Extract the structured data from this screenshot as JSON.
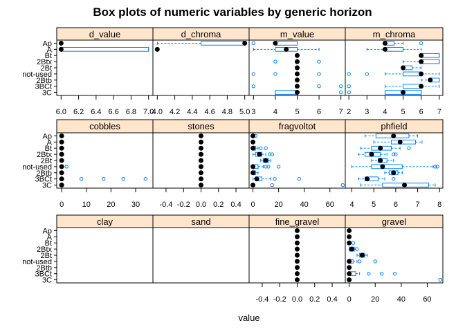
{
  "chart_data": {
    "type": "box",
    "title": "Box plots of numeric variables by generic horizon",
    "xlabel": "value",
    "categories": [
      "Ap",
      "A",
      "Bt",
      "2Btx",
      "2Bt",
      "not-used",
      "2Btb",
      "3BCt",
      "3C"
    ],
    "colors": {
      "strip": "#ffe5cc",
      "box": "#0080ff",
      "median": "#000000",
      "frame": "#000000"
    },
    "columns": [
      {
        "xlim": [
          5.95,
          7.05
        ],
        "ticks": [
          6.0,
          6.2,
          6.4,
          6.6,
          6.8,
          7.0
        ],
        "tick_labels": [
          "6.0",
          "6.2",
          "6.4",
          "6.6",
          "6.8",
          "7.0"
        ]
      },
      {
        "xlim": [
          3.95,
          5.05
        ],
        "ticks": [
          4.0,
          4.2,
          4.4,
          4.6,
          4.8,
          5.0
        ],
        "tick_labels": [
          "4.0",
          "4.2",
          "4.4",
          "4.6",
          "4.8",
          "5.0"
        ]
      },
      {
        "xlim": [
          2.8,
          7.2
        ],
        "ticks": [
          3,
          4,
          5,
          6,
          7
        ],
        "tick_labels": [
          "3",
          "4",
          "5",
          "6",
          "7"
        ]
      },
      {
        "xlim": [
          1.8,
          7.2
        ],
        "ticks": [
          2,
          3,
          4,
          5,
          6,
          7
        ],
        "tick_labels": [
          "2",
          "3",
          "4",
          "5",
          "6",
          "7"
        ]
      }
    ],
    "row_axes": [
      [
        {
          "xlim": [
            -2,
            37
          ],
          "ticks": [
            0,
            10,
            20,
            30
          ],
          "tick_labels": [
            "0",
            "10",
            "20",
            "30"
          ]
        },
        {
          "xlim": [
            -0.55,
            0.55
          ],
          "ticks": [
            -0.4,
            -0.2,
            0.0,
            0.2,
            0.4
          ],
          "tick_labels": [
            "-0.4",
            "-0.2",
            "0.0",
            "0.2",
            "0.4"
          ]
        },
        {
          "xlim": [
            -3,
            72
          ],
          "ticks": [
            0,
            20,
            40,
            60
          ],
          "tick_labels": [
            "0",
            "20",
            "40",
            "60"
          ]
        },
        {
          "xlim": [
            3.7,
            8.15
          ],
          "ticks": [
            4,
            5,
            6,
            7,
            8
          ],
          "tick_labels": [
            "4",
            "5",
            "6",
            "7",
            "8"
          ]
        }
      ],
      [
        {
          "xlim": [
            -0.55,
            0.55
          ],
          "ticks": [],
          "tick_labels": []
        },
        {
          "xlim": [
            -0.55,
            0.55
          ],
          "ticks": [],
          "tick_labels": []
        },
        {
          "xlim": [
            -0.55,
            0.55
          ],
          "ticks": [
            -0.4,
            -0.2,
            0.0,
            0.2,
            0.4
          ],
          "tick_labels": [
            "-0.4",
            "-0.2",
            "0.0",
            "0.2",
            "0.4"
          ]
        },
        {
          "xlim": [
            -3,
            72
          ],
          "ticks": [
            0,
            20,
            40,
            60
          ],
          "tick_labels": [
            "0",
            "20",
            "40",
            "60"
          ]
        }
      ]
    ],
    "panels": [
      {
        "name": "d_value",
        "boxes": [
          {
            "cat": "Ap",
            "q1": 6.0,
            "med": 6.0,
            "q3": 6.0,
            "lo": 6.0,
            "hi": 6.0,
            "out": []
          },
          {
            "cat": "A",
            "q1": 6.0,
            "med": 6.0,
            "q3": 7.0,
            "lo": 6.0,
            "hi": 7.0,
            "out": []
          }
        ]
      },
      {
        "name": "d_chroma",
        "boxes": [
          {
            "cat": "Ap",
            "q1": 4.5,
            "med": 5.0,
            "q3": 5.0,
            "lo": 4.0,
            "hi": 5.0,
            "out": []
          },
          {
            "cat": "A",
            "q1": 4.0,
            "med": 4.0,
            "q3": 4.0,
            "lo": 4.0,
            "hi": 4.0,
            "out": []
          }
        ]
      },
      {
        "name": "m_value",
        "boxes": [
          {
            "cat": "Ap",
            "q1": 4.0,
            "med": 4.0,
            "q3": 5.0,
            "lo": 4.0,
            "hi": 5.0,
            "out": [
              3
            ]
          },
          {
            "cat": "A",
            "q1": 4.0,
            "med": 4.5,
            "q3": 5.0,
            "lo": 3.0,
            "hi": 6.0,
            "out": []
          },
          {
            "cat": "Bt",
            "q1": 5.0,
            "med": 5.0,
            "q3": 5.0,
            "lo": 5.0,
            "hi": 5.0,
            "out": []
          },
          {
            "cat": "2Btx",
            "q1": 5.0,
            "med": 5.0,
            "q3": 5.0,
            "lo": 5.0,
            "hi": 5.0,
            "out": [
              4,
              6
            ]
          },
          {
            "cat": "2Bt",
            "q1": 5.0,
            "med": 5.0,
            "q3": 5.0,
            "lo": 5.0,
            "hi": 5.0,
            "out": []
          },
          {
            "cat": "not-used",
            "q1": 5.0,
            "med": 5.0,
            "q3": 5.0,
            "lo": 5.0,
            "hi": 5.0,
            "out": [
              3,
              4,
              6
            ]
          },
          {
            "cat": "2Btb",
            "q1": 5.0,
            "med": 5.0,
            "q3": 5.0,
            "lo": 5.0,
            "hi": 5.0,
            "out": []
          },
          {
            "cat": "3BCt",
            "q1": 5.0,
            "med": 5.0,
            "q3": 5.0,
            "lo": 5.0,
            "hi": 5.0,
            "out": [
              3,
              6,
              7
            ]
          },
          {
            "cat": "3C",
            "q1": 4.0,
            "med": 5.0,
            "q3": 5.0,
            "lo": 4.0,
            "hi": 5.0,
            "out": [
              7
            ]
          }
        ]
      },
      {
        "name": "m_chroma",
        "boxes": [
          {
            "cat": "Ap",
            "q1": 4.0,
            "med": 4.0,
            "q3": 4.5,
            "lo": 4.0,
            "hi": 5.0,
            "out": [
              6
            ]
          },
          {
            "cat": "A",
            "q1": 4.0,
            "med": 4.0,
            "q3": 5.0,
            "lo": 3.0,
            "hi": 6.0,
            "out": []
          },
          {
            "cat": "Bt",
            "q1": 6.0,
            "med": 6.0,
            "q3": 7.0,
            "lo": 6.0,
            "hi": 7.0,
            "out": []
          },
          {
            "cat": "2Btx",
            "q1": 6.0,
            "med": 6.0,
            "q3": 7.0,
            "lo": 5.0,
            "hi": 7.0,
            "out": []
          },
          {
            "cat": "2Bt",
            "q1": 5.0,
            "med": 5.0,
            "q3": 5.5,
            "lo": 5.0,
            "hi": 6.0,
            "out": []
          },
          {
            "cat": "not-used",
            "q1": 5.0,
            "med": 6.0,
            "q3": 6.0,
            "lo": 4.0,
            "hi": 7.0,
            "out": [
              2,
              3
            ]
          },
          {
            "cat": "2Btb",
            "q1": 6.5,
            "med": 6.5,
            "q3": 7.0,
            "lo": 6.0,
            "hi": 7.0,
            "out": []
          },
          {
            "cat": "3BCt",
            "q1": 5.0,
            "med": 6.0,
            "q3": 6.0,
            "lo": 4.0,
            "hi": 7.0,
            "out": [
              2
            ]
          },
          {
            "cat": "3C",
            "q1": 4.0,
            "med": 5.0,
            "q3": 6.0,
            "lo": 4.0,
            "hi": 6.0,
            "out": [
              2
            ]
          }
        ]
      },
      {
        "name": "cobbles",
        "boxes": [
          {
            "cat": "Ap",
            "q1": 0,
            "med": 0,
            "q3": 0,
            "lo": 0,
            "hi": 0,
            "out": []
          },
          {
            "cat": "A",
            "q1": 0,
            "med": 0,
            "q3": 0,
            "lo": 0,
            "hi": 0,
            "out": []
          },
          {
            "cat": "Bt",
            "q1": 0,
            "med": 0,
            "q3": 0,
            "lo": 0,
            "hi": 0,
            "out": []
          },
          {
            "cat": "2Btx",
            "q1": 0,
            "med": 0,
            "q3": 0,
            "lo": 0,
            "hi": 0,
            "out": []
          },
          {
            "cat": "2Bt",
            "q1": 0,
            "med": 0,
            "q3": 0,
            "lo": 0,
            "hi": 0,
            "out": []
          },
          {
            "cat": "not-used",
            "q1": 0,
            "med": 0,
            "q3": 0,
            "lo": 0,
            "hi": 0,
            "out": [
              2
            ]
          },
          {
            "cat": "2Btb",
            "q1": 0,
            "med": 0,
            "q3": 0,
            "lo": 0,
            "hi": 0,
            "out": []
          },
          {
            "cat": "3BCt",
            "q1": 0,
            "med": 0,
            "q3": 0,
            "lo": 0,
            "hi": 0,
            "out": [
              8,
              17,
              25,
              34
            ]
          },
          {
            "cat": "3C",
            "q1": 0,
            "med": 0,
            "q3": 0,
            "lo": 0,
            "hi": 0,
            "out": []
          }
        ]
      },
      {
        "name": "stones",
        "boxes": [
          {
            "cat": "Ap",
            "q1": 0,
            "med": 0,
            "q3": 0,
            "lo": 0,
            "hi": 0,
            "out": []
          },
          {
            "cat": "A",
            "q1": 0,
            "med": 0,
            "q3": 0,
            "lo": 0,
            "hi": 0,
            "out": []
          },
          {
            "cat": "Bt",
            "q1": 0,
            "med": 0,
            "q3": 0,
            "lo": 0,
            "hi": 0,
            "out": []
          },
          {
            "cat": "2Btx",
            "q1": 0,
            "med": 0,
            "q3": 0,
            "lo": 0,
            "hi": 0,
            "out": []
          },
          {
            "cat": "2Bt",
            "q1": 0,
            "med": 0,
            "q3": 0,
            "lo": 0,
            "hi": 0,
            "out": []
          },
          {
            "cat": "not-used",
            "q1": 0,
            "med": 0,
            "q3": 0,
            "lo": 0,
            "hi": 0,
            "out": []
          },
          {
            "cat": "2Btb",
            "q1": 0,
            "med": 0,
            "q3": 0,
            "lo": 0,
            "hi": 0,
            "out": []
          },
          {
            "cat": "3BCt",
            "q1": 0,
            "med": 0,
            "q3": 0,
            "lo": 0,
            "hi": 0,
            "out": []
          },
          {
            "cat": "3C",
            "q1": 0,
            "med": 0,
            "q3": 0,
            "lo": 0,
            "hi": 0,
            "out": []
          }
        ]
      },
      {
        "name": "fragvoltot",
        "boxes": [
          {
            "cat": "Ap",
            "q1": 0,
            "med": 0,
            "q3": 0,
            "lo": 0,
            "hi": 0,
            "out": [
              2
            ]
          },
          {
            "cat": "A",
            "q1": 0,
            "med": 0,
            "q3": 0,
            "lo": 0,
            "hi": 0,
            "out": []
          },
          {
            "cat": "Bt",
            "q1": 0,
            "med": 0,
            "q3": 2,
            "lo": 0,
            "hi": 4,
            "out": [
              6,
              10
            ]
          },
          {
            "cat": "2Btx",
            "q1": 2,
            "med": 5,
            "q3": 7,
            "lo": 0,
            "hi": 10,
            "out": [
              13,
              15
            ]
          },
          {
            "cat": "2Bt",
            "q1": 8,
            "med": 10,
            "q3": 12,
            "lo": 6,
            "hi": 14,
            "out": []
          },
          {
            "cat": "not-used",
            "q1": 0,
            "med": 0,
            "q3": 4,
            "lo": 0,
            "hi": 8,
            "out": [
              10,
              12,
              20
            ]
          },
          {
            "cat": "2Btb",
            "q1": 0,
            "med": 0,
            "q3": 2,
            "lo": 0,
            "hi": 4,
            "out": []
          },
          {
            "cat": "3BCt",
            "q1": 2,
            "med": 3,
            "q3": 7,
            "lo": 0,
            "hi": 14,
            "out": [
              17,
              36
            ]
          },
          {
            "cat": "3C",
            "q1": 0,
            "med": 0,
            "q3": 0,
            "lo": 0,
            "hi": 0,
            "out": [
              15,
              70
            ]
          }
        ]
      },
      {
        "name": "phfield",
        "boxes": [
          {
            "cat": "Ap",
            "q1": 5.1,
            "med": 5.9,
            "q3": 6.6,
            "lo": 4.6,
            "hi": 7.0,
            "out": []
          },
          {
            "cat": "A",
            "q1": 5.8,
            "med": 6.2,
            "q3": 6.9,
            "lo": 5.0,
            "hi": 7.2,
            "out": []
          },
          {
            "cat": "Bt",
            "q1": 4.9,
            "med": 5.3,
            "q3": 5.8,
            "lo": 4.4,
            "hi": 6.2,
            "out": [
              6.6
            ]
          },
          {
            "cat": "2Btx",
            "q1": 4.6,
            "med": 4.9,
            "q3": 5.3,
            "lo": 4.3,
            "hi": 5.6,
            "out": [
              5.9,
              6.0
            ]
          },
          {
            "cat": "2Bt",
            "q1": 5.2,
            "med": 5.3,
            "q3": 5.6,
            "lo": 4.9,
            "hi": 5.9,
            "out": []
          },
          {
            "cat": "not-used",
            "q1": 4.9,
            "med": 5.4,
            "q3": 6.3,
            "lo": 4.0,
            "hi": 7.7,
            "out": [
              7.8,
              7.9
            ]
          },
          {
            "cat": "2Btb",
            "q1": 5.7,
            "med": 5.9,
            "q3": 6.1,
            "lo": 5.5,
            "hi": 6.3,
            "out": []
          },
          {
            "cat": "3BCt",
            "q1": 4.6,
            "med": 4.7,
            "q3": 5.2,
            "lo": 4.3,
            "hi": 5.5,
            "out": [
              5.9
            ]
          },
          {
            "cat": "3C",
            "q1": 5.4,
            "med": 6.4,
            "q3": 7.5,
            "lo": 4.4,
            "hi": 7.8,
            "out": []
          }
        ]
      },
      {
        "name": "clay",
        "boxes": []
      },
      {
        "name": "sand",
        "boxes": []
      },
      {
        "name": "fine_gravel",
        "boxes": [
          {
            "cat": "Ap",
            "q1": 0,
            "med": 0,
            "q3": 0,
            "lo": 0,
            "hi": 0,
            "out": []
          },
          {
            "cat": "A",
            "q1": 0,
            "med": 0,
            "q3": 0,
            "lo": 0,
            "hi": 0,
            "out": []
          },
          {
            "cat": "Bt",
            "q1": 0,
            "med": 0,
            "q3": 0,
            "lo": 0,
            "hi": 0,
            "out": []
          },
          {
            "cat": "2Btx",
            "q1": 0,
            "med": 0,
            "q3": 0,
            "lo": 0,
            "hi": 0,
            "out": []
          },
          {
            "cat": "2Bt",
            "q1": 0,
            "med": 0,
            "q3": 0,
            "lo": 0,
            "hi": 0,
            "out": []
          },
          {
            "cat": "not-used",
            "q1": 0,
            "med": 0,
            "q3": 0,
            "lo": 0,
            "hi": 0,
            "out": []
          },
          {
            "cat": "2Btb",
            "q1": 0,
            "med": 0,
            "q3": 0,
            "lo": 0,
            "hi": 0,
            "out": []
          },
          {
            "cat": "3BCt",
            "q1": 0,
            "med": 0,
            "q3": 0,
            "lo": 0,
            "hi": 0,
            "out": []
          },
          {
            "cat": "3C",
            "q1": 0,
            "med": 0,
            "q3": 0,
            "lo": 0,
            "hi": 0,
            "out": []
          }
        ]
      },
      {
        "name": "gravel",
        "boxes": [
          {
            "cat": "Ap",
            "q1": 0,
            "med": 0,
            "q3": 0,
            "lo": 0,
            "hi": 0,
            "out": []
          },
          {
            "cat": "A",
            "q1": 0,
            "med": 0,
            "q3": 0,
            "lo": 0,
            "hi": 0,
            "out": []
          },
          {
            "cat": "Bt",
            "q1": 0,
            "med": 0,
            "q3": 0,
            "lo": 0,
            "hi": 0,
            "out": [
              3
            ]
          },
          {
            "cat": "2Btx",
            "q1": 0,
            "med": 2,
            "q3": 4,
            "lo": 0,
            "hi": 5,
            "out": [
              6
            ]
          },
          {
            "cat": "2Bt",
            "q1": 8,
            "med": 10,
            "q3": 12,
            "lo": 6,
            "hi": 14,
            "out": []
          },
          {
            "cat": "not-used",
            "q1": 0,
            "med": 0,
            "q3": 3,
            "lo": 0,
            "hi": 6,
            "out": [
              8,
              20
            ]
          },
          {
            "cat": "2Btb",
            "q1": 0,
            "med": 0,
            "q3": 0,
            "lo": 0,
            "hi": 0,
            "out": []
          },
          {
            "cat": "3BCt",
            "q1": 0,
            "med": 0,
            "q3": 5,
            "lo": 0,
            "hi": 8,
            "out": [
              15,
              25,
              35
            ]
          },
          {
            "cat": "3C",
            "q1": 0,
            "med": 0,
            "q3": 0,
            "lo": 0,
            "hi": 0,
            "out": [
              70
            ]
          }
        ]
      }
    ]
  }
}
